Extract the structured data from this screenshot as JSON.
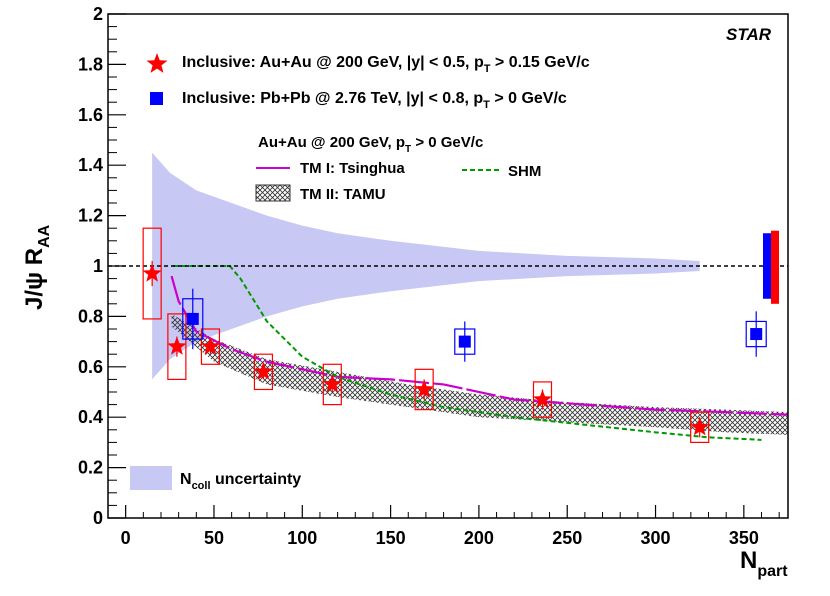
{
  "chart_data": {
    "type": "scatter",
    "experiment_label": "STAR",
    "xlabel": "N_part",
    "xlabel_main": "N",
    "xlabel_sub": "part",
    "ylabel": "J/ψ R_AA",
    "ylabel_main": "J/ψ R",
    "ylabel_sub": "AA",
    "xlim": [
      -10,
      375
    ],
    "ylim": [
      0,
      2
    ],
    "x_ticks": [
      0,
      50,
      100,
      150,
      200,
      250,
      300,
      350
    ],
    "x_tick_labels": [
      "0",
      "50",
      "100",
      "150",
      "200",
      "250",
      "300",
      "350"
    ],
    "y_ticks": [
      0,
      0.2,
      0.4,
      0.6,
      0.8,
      1,
      1.2,
      1.4,
      1.6,
      1.8,
      2
    ],
    "y_tick_labels": [
      "0",
      "0.2",
      "0.4",
      "0.6",
      "0.8",
      "1",
      "1.2",
      "1.4",
      "1.6",
      "1.8",
      "2"
    ],
    "reference_line": 1.0,
    "series": [
      {
        "name": "inclusive-auau",
        "legend_main": "Inclusive: Au+Au @ 200 GeV, |y| < 0.5, p",
        "legend_sub": "T",
        "legend_tail": " > 0.15 GeV/c",
        "marker": "star",
        "color": "#ff0000",
        "points": [
          {
            "x": 15,
            "y": 0.97,
            "sys": 0.18,
            "stat": 0.05
          },
          {
            "x": 29,
            "y": 0.68,
            "sys": 0.13,
            "stat": 0.04
          },
          {
            "x": 48,
            "y": 0.68,
            "sys": 0.07,
            "stat": 0.03
          },
          {
            "x": 78,
            "y": 0.58,
            "sys": 0.07,
            "stat": 0.03
          },
          {
            "x": 117,
            "y": 0.53,
            "sys": 0.08,
            "stat": 0.03
          },
          {
            "x": 169,
            "y": 0.51,
            "sys": 0.08,
            "stat": 0.04
          },
          {
            "x": 236,
            "y": 0.47,
            "sys": 0.07,
            "stat": 0.04
          },
          {
            "x": 325,
            "y": 0.36,
            "sys": 0.06,
            "stat": 0.04
          }
        ]
      },
      {
        "name": "inclusive-pbpb",
        "legend_main": "Inclusive: Pb+Pb @ 2.76 TeV, |y| < 0.8, p",
        "legend_sub": "T",
        "legend_tail": " > 0 GeV/c",
        "marker": "square",
        "color": "#0000ff",
        "points": [
          {
            "x": 38,
            "y": 0.79,
            "sys": 0.08,
            "stat": 0.12
          },
          {
            "x": 192,
            "y": 0.7,
            "sys": 0.05,
            "stat": 0.08
          },
          {
            "x": 357,
            "y": 0.73,
            "sys": 0.05,
            "stat": 0.09
          }
        ]
      }
    ],
    "models": {
      "header_main": "Au+Au @ 200 GeV, p",
      "header_sub": "T",
      "header_tail": " > 0 GeV/c",
      "tm1": {
        "label": "TM I: Tsinghua",
        "color": "#cc00cc",
        "x": [
          26,
          30,
          40,
          60,
          80,
          100,
          120,
          150,
          180,
          220,
          260,
          300,
          340,
          375
        ],
        "y": [
          0.96,
          0.86,
          0.74,
          0.67,
          0.62,
          0.59,
          0.56,
          0.55,
          0.53,
          0.47,
          0.45,
          0.43,
          0.42,
          0.41
        ]
      },
      "shm": {
        "label": "SHM",
        "color": "#009900",
        "x": [
          27,
          40,
          59,
          65,
          80,
          100,
          120,
          150,
          180,
          220,
          260,
          300,
          330,
          360
        ],
        "y": [
          1.0,
          1.0,
          1.0,
          0.95,
          0.78,
          0.64,
          0.56,
          0.49,
          0.44,
          0.4,
          0.37,
          0.34,
          0.32,
          0.31
        ]
      },
      "tm2": {
        "label": "TM II: TAMU",
        "x": [
          26,
          50,
          80,
          120,
          160,
          200,
          250,
          300,
          340,
          375
        ],
        "upper": [
          0.81,
          0.71,
          0.63,
          0.58,
          0.53,
          0.49,
          0.46,
          0.44,
          0.43,
          0.42
        ],
        "lower": [
          0.76,
          0.62,
          0.53,
          0.48,
          0.44,
          0.4,
          0.38,
          0.36,
          0.34,
          0.33
        ]
      }
    },
    "ncoll_band": {
      "label_main": "N",
      "label_sub": "coll",
      "label_tail": " uncertainty",
      "color": "#c8c8f5",
      "x": [
        15,
        25,
        40,
        60,
        80,
        100,
        120,
        150,
        200,
        250,
        300,
        325
      ],
      "upper": [
        1.45,
        1.37,
        1.3,
        1.25,
        1.2,
        1.16,
        1.13,
        1.1,
        1.06,
        1.04,
        1.03,
        1.02
      ],
      "lower": [
        0.55,
        0.63,
        0.7,
        0.75,
        0.8,
        0.84,
        0.87,
        0.9,
        0.94,
        0.96,
        0.97,
        0.98
      ]
    },
    "global_uncertainty": [
      {
        "name": "pbpb-global",
        "color": "#0000ff",
        "low": 0.87,
        "high": 1.13
      },
      {
        "name": "auau-global",
        "color": "#ff0000",
        "low": 0.85,
        "high": 1.14
      }
    ]
  }
}
